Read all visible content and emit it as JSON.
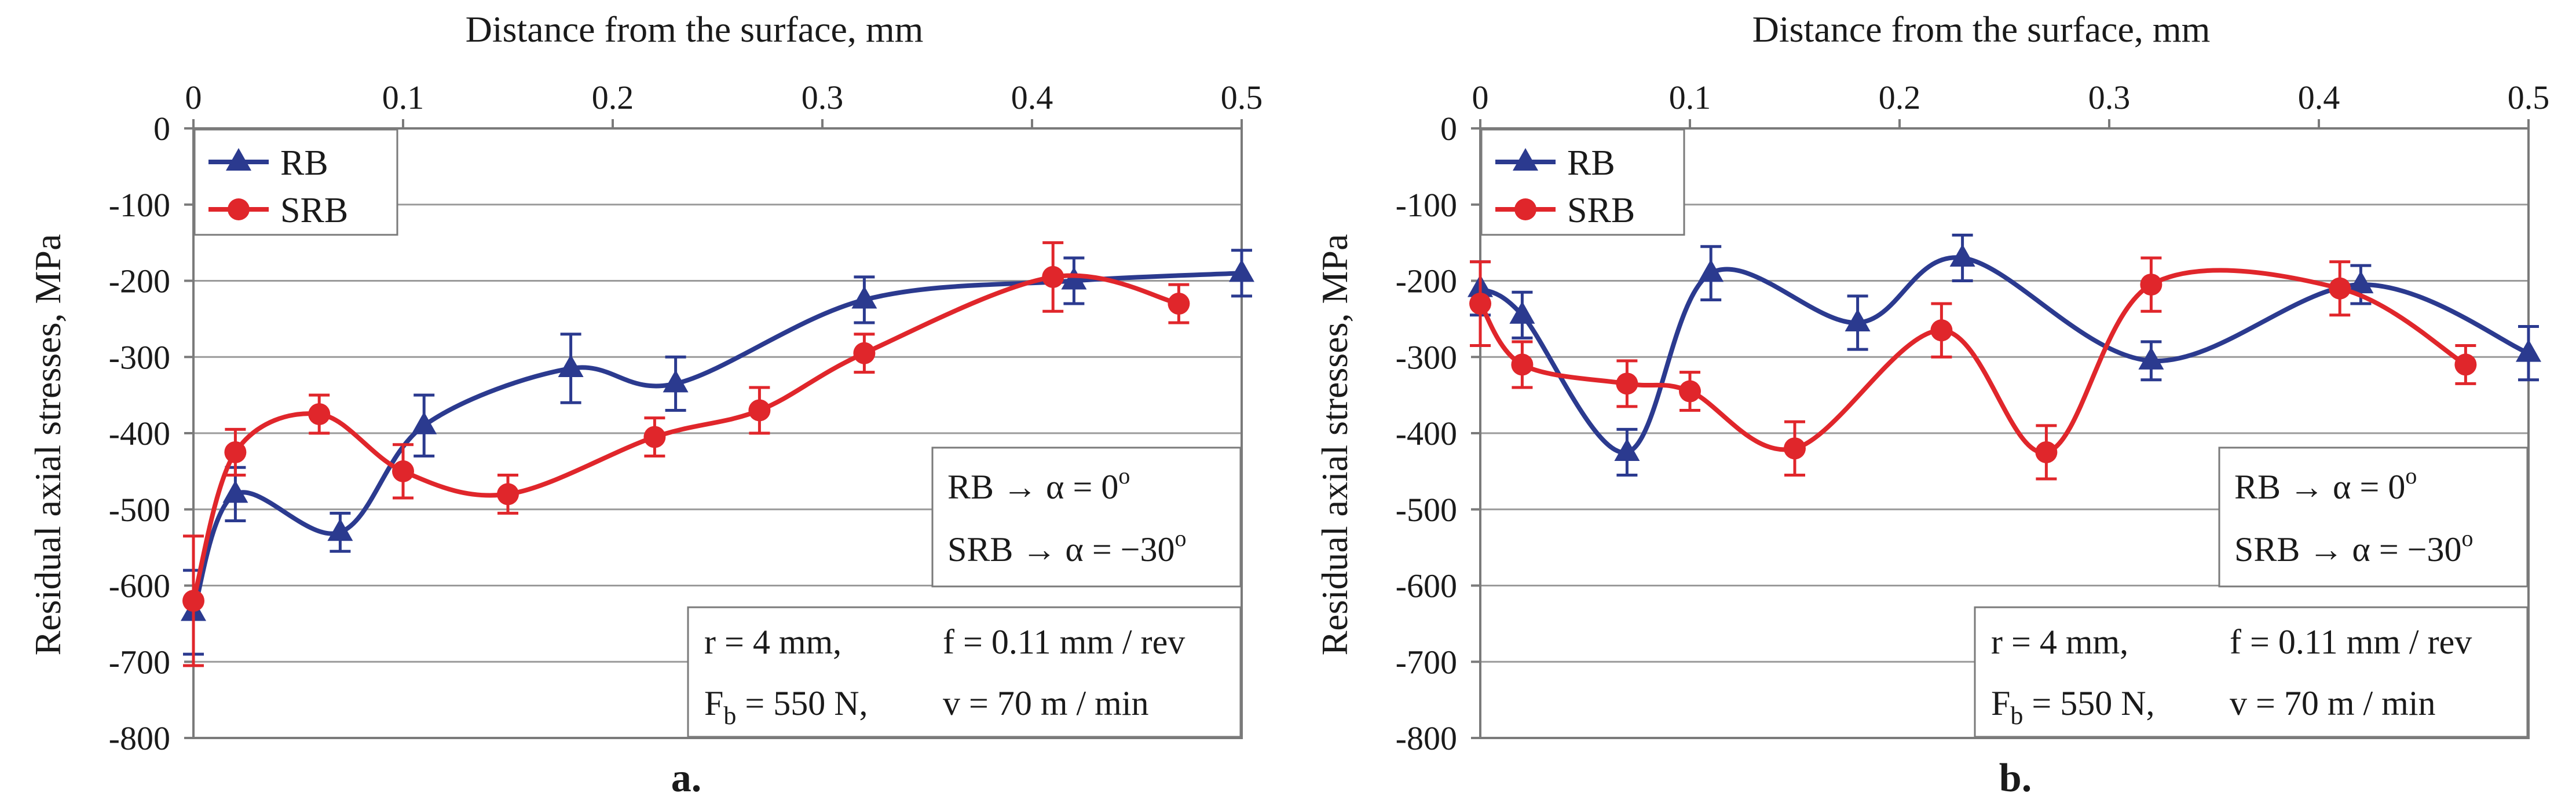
{
  "colors": {
    "RB": "#2b3a8f",
    "SRB": "#e0262b"
  },
  "legend": {
    "rb": "RB",
    "srb": "SRB"
  },
  "info": {
    "line1a": "RB → α = 0",
    "line1sup": "o",
    "line2a": "SRB → α = −30",
    "line2sup": "o",
    "line3a": "r = 4 mm,",
    "line3b": "f = 0.11 mm / rev",
    "line4a": "F",
    "line4sub": "b",
    "line4b": " = 550 N,",
    "line4c": "v = 70 m / min"
  },
  "chart_data": [
    {
      "panel": "a.",
      "type": "line",
      "xlabel": "Distance from the surface, mm",
      "ylabel": "Residual axial stresses, MPa",
      "xlim": [
        0,
        0.5
      ],
      "ylim": [
        -800,
        0
      ],
      "xticks": [
        0,
        0.1,
        0.2,
        0.3,
        0.4,
        0.5
      ],
      "xtick_labels": [
        "0",
        "0.1",
        "0.2",
        "0.3",
        "0.4",
        "0.5"
      ],
      "yticks": [
        0,
        -100,
        -200,
        -300,
        -400,
        -500,
        -600,
        -700,
        -800
      ],
      "ytick_labels": [
        "0",
        "-100",
        "-200",
        "-300",
        "-400",
        "-500",
        "-600",
        "-700",
        "-800"
      ],
      "grid": true,
      "legend_position": "top-left",
      "series": [
        {
          "name": "RB",
          "marker": "triangle",
          "x": [
            0,
            0.02,
            0.07,
            0.11,
            0.18,
            0.23,
            0.32,
            0.42,
            0.5
          ],
          "y": [
            -635,
            -480,
            -530,
            -390,
            -315,
            -335,
            -225,
            -200,
            -190
          ],
          "err": [
            55,
            35,
            25,
            40,
            45,
            35,
            30,
            30,
            30
          ]
        },
        {
          "name": "SRB",
          "marker": "circle",
          "x": [
            0,
            0.02,
            0.06,
            0.1,
            0.15,
            0.22,
            0.27,
            0.32,
            0.41,
            0.47
          ],
          "y": [
            -620,
            -425,
            -375,
            -450,
            -480,
            -405,
            -370,
            -295,
            -195,
            -230
          ],
          "err": [
            85,
            30,
            25,
            35,
            25,
            25,
            30,
            25,
            45,
            25
          ]
        }
      ]
    },
    {
      "panel": "b.",
      "type": "line",
      "xlabel": "Distance from the surface, mm",
      "ylabel": "Residual axial stresses, MPa",
      "xlim": [
        0,
        0.5
      ],
      "ylim": [
        -800,
        0
      ],
      "xticks": [
        0,
        0.1,
        0.2,
        0.3,
        0.4,
        0.5
      ],
      "xtick_labels": [
        "0",
        "0.1",
        "0.2",
        "0.3",
        "0.4",
        "0.5"
      ],
      "yticks": [
        0,
        -100,
        -200,
        -300,
        -400,
        -500,
        -600,
        -700,
        -800
      ],
      "ytick_labels": [
        "0",
        "-100",
        "-200",
        "-300",
        "-400",
        "-500",
        "-600",
        "-700",
        "-800"
      ],
      "grid": true,
      "legend_position": "top-left",
      "series": [
        {
          "name": "RB",
          "marker": "triangle",
          "x": [
            0,
            0.02,
            0.07,
            0.11,
            0.18,
            0.23,
            0.32,
            0.42,
            0.5
          ],
          "y": [
            -210,
            -245,
            -425,
            -190,
            -255,
            -170,
            -305,
            -205,
            -295
          ],
          "err": [
            35,
            30,
            30,
            35,
            35,
            30,
            25,
            25,
            35
          ]
        },
        {
          "name": "SRB",
          "marker": "circle",
          "x": [
            0,
            0.02,
            0.07,
            0.1,
            0.15,
            0.22,
            0.27,
            0.32,
            0.41,
            0.47
          ],
          "y": [
            -230,
            -310,
            -335,
            -345,
            -420,
            -265,
            -425,
            -205,
            -210,
            -310
          ],
          "err": [
            55,
            30,
            30,
            25,
            35,
            35,
            35,
            35,
            35,
            25
          ]
        }
      ]
    }
  ]
}
